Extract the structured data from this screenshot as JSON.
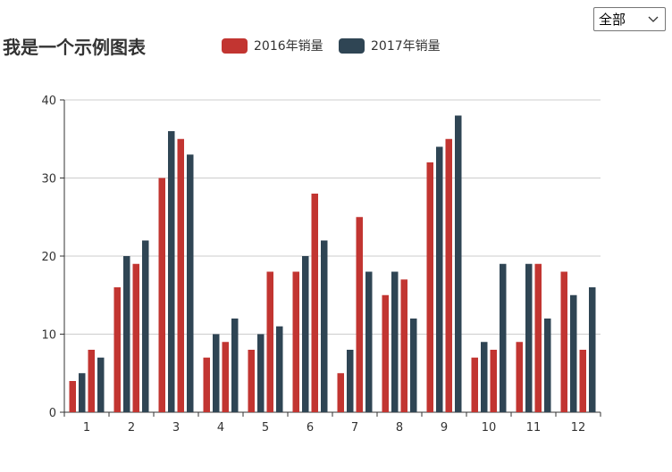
{
  "filter": {
    "selected": "全部"
  },
  "chart_data": {
    "type": "bar",
    "title": "我是一个示例图表",
    "categories": [
      "1",
      "2",
      "3",
      "4",
      "5",
      "6",
      "7",
      "8",
      "9",
      "10",
      "11",
      "12"
    ],
    "legend_position": "top",
    "grid": true,
    "ylim": [
      0,
      40
    ],
    "y_ticks": [
      0,
      10,
      20,
      30,
      40
    ],
    "colors": {
      "red": "#c23531",
      "dark": "#2f4554"
    },
    "series": [
      {
        "name": "2016年销量",
        "color": "#c23531",
        "legend": true,
        "values": [
          4,
          16,
          30,
          7,
          8,
          18,
          5,
          15,
          32,
          7,
          9,
          18
        ]
      },
      {
        "name": "2017年销量",
        "color": "#2f4554",
        "legend": true,
        "values": [
          5,
          20,
          36,
          10,
          10,
          20,
          8,
          18,
          34,
          9,
          19,
          15
        ]
      },
      {
        "name": "",
        "color": "#c23531",
        "legend": false,
        "values": [
          8,
          19,
          35,
          9,
          18,
          28,
          25,
          17,
          35,
          8,
          19,
          8
        ]
      },
      {
        "name": "",
        "color": "#2f4554",
        "legend": false,
        "values": [
          7,
          22,
          33,
          12,
          11,
          22,
          18,
          12,
          38,
          19,
          12,
          16
        ]
      }
    ]
  }
}
